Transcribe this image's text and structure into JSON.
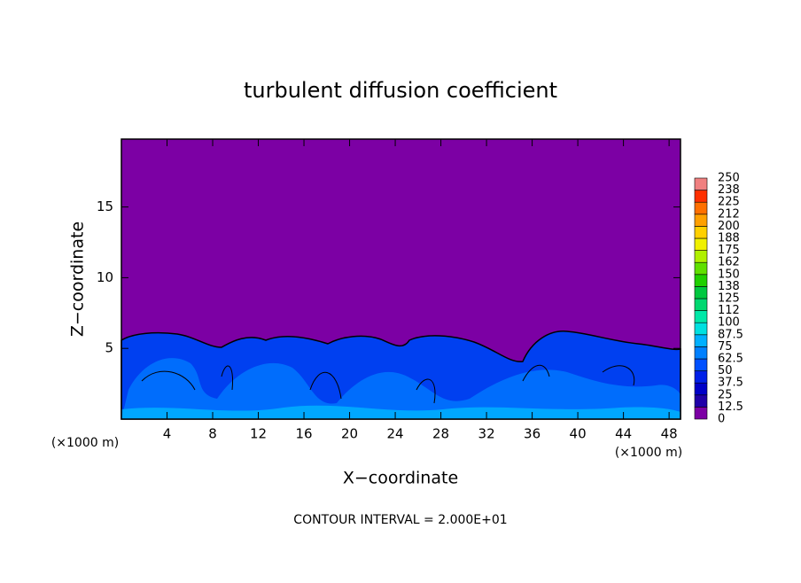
{
  "chart_data": {
    "type": "contour",
    "title": "turbulent diffusion coefficient",
    "xlabel": "X−coordinate",
    "ylabel": "Z−coordinate",
    "x_unit": "(×1000 m)",
    "note": "CONTOUR INTERVAL = 2.000E+01",
    "xlim": [
      0,
      49
    ],
    "xticks": [
      4,
      8,
      12,
      16,
      20,
      24,
      28,
      32,
      36,
      40,
      44,
      48
    ],
    "ylim": [
      0,
      19.8
    ],
    "yticks": [
      5,
      10,
      15
    ],
    "colorbar": {
      "levels": [
        0,
        12.5,
        25,
        37.5,
        50,
        62.5,
        75,
        87.5,
        100,
        112,
        125,
        138,
        150,
        162,
        175,
        188,
        200,
        212,
        225,
        238,
        250
      ],
      "colors": [
        "#7c00a4",
        "#2000a8",
        "#0000c8",
        "#0020e8",
        "#0050ff",
        "#0080ff",
        "#00b0ff",
        "#00e0e0",
        "#00e8a8",
        "#00d870",
        "#00c840",
        "#20d000",
        "#60e000",
        "#b0f000",
        "#f0f000",
        "#ffd000",
        "#ffa000",
        "#ff7000",
        "#ff3000",
        "#f08080"
      ]
    }
  }
}
